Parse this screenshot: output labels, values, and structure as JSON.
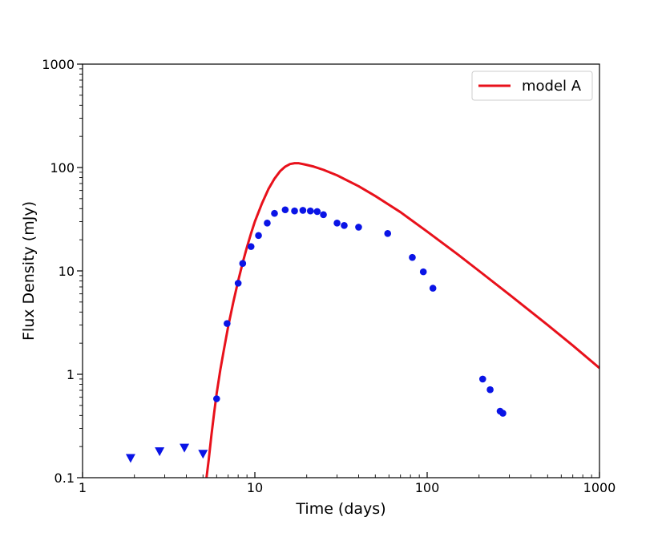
{
  "chart_data": {
    "type": "scatter",
    "xlabel": "Time (days)",
    "ylabel": "Flux Density (mJy)",
    "xscale": "log",
    "yscale": "log",
    "xlim": [
      1,
      1000
    ],
    "ylim": [
      0.1,
      1000
    ],
    "xticks": [
      {
        "value": 1,
        "label": "1"
      },
      {
        "value": 10,
        "label": "10"
      },
      {
        "value": 100,
        "label": "100"
      },
      {
        "value": 1000,
        "label": "1000"
      }
    ],
    "yticks": [
      {
        "value": 0.1,
        "label": "0.1"
      },
      {
        "value": 1,
        "label": "1"
      },
      {
        "value": 10,
        "label": "10"
      },
      {
        "value": 100,
        "label": "100"
      },
      {
        "value": 1000,
        "label": "1000"
      }
    ],
    "grid": false,
    "legend": {
      "position": "top-right",
      "entries": [
        "model A"
      ]
    },
    "series": [
      {
        "name": "model A",
        "kind": "line",
        "color": "#e8111b",
        "x": [
          5.2,
          5.4,
          5.6,
          5.8,
          6.0,
          6.3,
          6.6,
          7.0,
          7.5,
          8.0,
          8.5,
          9.0,
          9.5,
          10,
          11,
          12,
          13,
          14,
          15,
          16,
          17,
          18,
          20,
          22,
          25,
          30,
          40,
          50,
          70,
          100,
          150,
          200,
          300,
          500,
          700,
          1000
        ],
        "y": [
          0.09,
          0.15,
          0.26,
          0.42,
          0.65,
          1.1,
          1.7,
          2.9,
          5.0,
          8.0,
          12.0,
          17.0,
          23.0,
          30.0,
          45.0,
          62.0,
          78.0,
          92.0,
          102.0,
          108.0,
          110.0,
          110.0,
          106.0,
          102.0,
          95.0,
          84.0,
          66.0,
          53.0,
          37.0,
          24.0,
          14.5,
          10.0,
          5.9,
          3.0,
          1.9,
          1.15
        ]
      },
      {
        "name": "",
        "kind": "points",
        "color": "#0a14e6",
        "x": [
          6.0,
          6.9,
          8.0,
          8.5,
          9.5,
          10.5,
          11.8,
          13.0,
          15.0,
          17.0,
          19.0,
          21.0,
          23.0,
          25.0,
          30.0,
          33.0,
          40.0,
          59.0,
          82.0,
          95.0,
          108.0,
          210.0,
          232.0,
          265.0,
          275.0
        ],
        "y": [
          0.58,
          3.1,
          7.6,
          11.8,
          17.2,
          22.0,
          29.0,
          36.0,
          39.0,
          38.0,
          38.5,
          38.0,
          37.5,
          35.0,
          29.0,
          27.5,
          26.5,
          23.0,
          13.5,
          9.8,
          6.8,
          0.9,
          0.71,
          0.44,
          0.42
        ]
      },
      {
        "name": "",
        "kind": "upper-limits",
        "color": "#0a14e6",
        "x": [
          1.9,
          2.8,
          3.9,
          5.0
        ],
        "y": [
          0.155,
          0.18,
          0.195,
          0.17
        ]
      }
    ]
  }
}
